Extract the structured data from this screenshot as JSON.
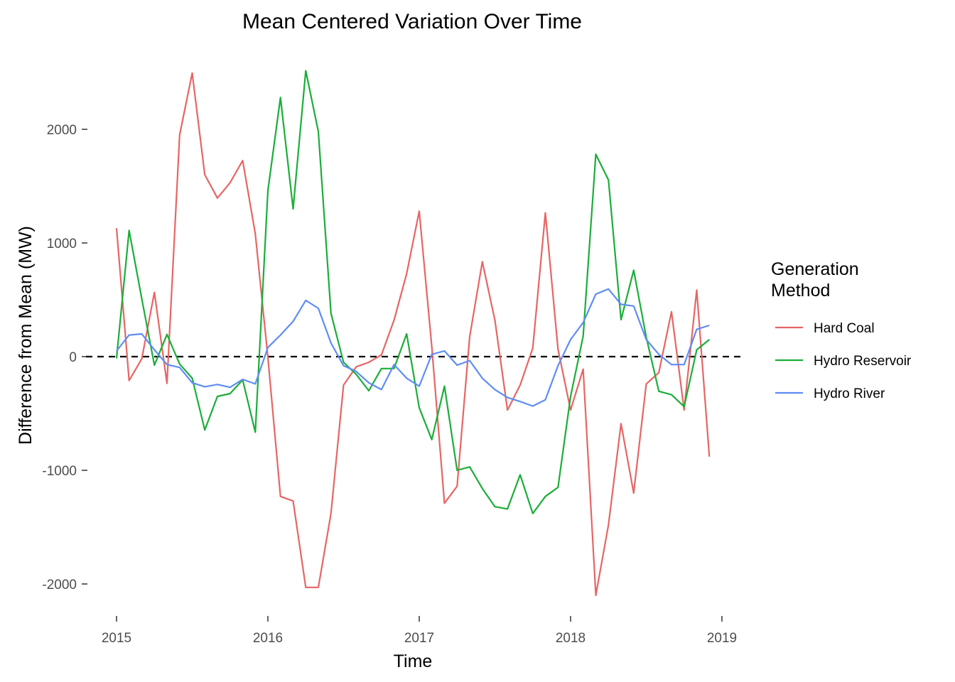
{
  "chart_data": {
    "type": "line",
    "title": "Mean Centered Variation Over Time",
    "xlabel": "Time",
    "ylabel": "Difference from Mean (MW)",
    "xlim": [
      2015.0,
      2019.0
    ],
    "ylim": [
      -2100,
      2520
    ],
    "x_ticks": [
      2015,
      2016,
      2017,
      2018,
      2019
    ],
    "x_tick_labels": [
      "2015",
      "2016",
      "2017",
      "2018",
      "2019"
    ],
    "y_ticks": [
      -2000,
      -1000,
      0,
      1000,
      2000
    ],
    "y_tick_labels": [
      "-2000",
      "-1000",
      "0",
      "1000",
      "2000"
    ],
    "grid": false,
    "legend": {
      "title": "Generation\nMethod",
      "title_lines": [
        "Generation",
        "Method"
      ],
      "position": "right"
    },
    "reference_line": {
      "y": 0,
      "style": "dashed",
      "color": "#000000"
    },
    "x": [
      "2015-01",
      "2015-02",
      "2015-03",
      "2015-04",
      "2015-05",
      "2015-06",
      "2015-07",
      "2015-08",
      "2015-09",
      "2015-10",
      "2015-11",
      "2015-12",
      "2016-01",
      "2016-02",
      "2016-03",
      "2016-04",
      "2016-05",
      "2016-06",
      "2016-07",
      "2016-08",
      "2016-09",
      "2016-10",
      "2016-11",
      "2016-12",
      "2017-01",
      "2017-02",
      "2017-03",
      "2017-04",
      "2017-05",
      "2017-06",
      "2017-07",
      "2017-08",
      "2017-09",
      "2017-10",
      "2017-11",
      "2017-12",
      "2018-01",
      "2018-02",
      "2018-03",
      "2018-04",
      "2018-05",
      "2018-06",
      "2018-07",
      "2018-08",
      "2018-09",
      "2018-10",
      "2018-11",
      "2018-12"
    ],
    "series": [
      {
        "name": "Hard Coal",
        "color": "#E76565",
        "values": [
          1130,
          -210,
          -20,
          565,
          -235,
          1950,
          2495,
          1600,
          1395,
          1530,
          1725,
          1080,
          -5,
          -1230,
          -1270,
          -2030,
          -2030,
          -1380,
          -250,
          -90,
          -50,
          15,
          320,
          730,
          1280,
          85,
          -1290,
          -1140,
          175,
          835,
          320,
          -470,
          -250,
          75,
          1265,
          65,
          -470,
          -110,
          -2100,
          -1480,
          -590,
          -1200,
          -240,
          -140,
          395,
          -470,
          585,
          -880
        ]
      },
      {
        "name": "Hydro Reservoir",
        "color": "#1AAE38",
        "values": [
          -15,
          1110,
          510,
          -75,
          195,
          -65,
          -190,
          -645,
          -350,
          -325,
          -205,
          -665,
          1460,
          2280,
          1300,
          2515,
          1980,
          380,
          -50,
          -155,
          -300,
          -105,
          -105,
          200,
          -450,
          -730,
          -260,
          -1000,
          -970,
          -1160,
          -1320,
          -1340,
          -1040,
          -1380,
          -1230,
          -1150,
          -350,
          180,
          1780,
          1555,
          325,
          760,
          170,
          -305,
          -335,
          -440,
          60,
          150
        ]
      },
      {
        "name": "Hydro River",
        "color": "#5E8DF5",
        "values": [
          50,
          190,
          200,
          60,
          -70,
          -95,
          -230,
          -265,
          -245,
          -270,
          -200,
          -240,
          80,
          190,
          310,
          495,
          425,
          120,
          -80,
          -130,
          -230,
          -290,
          -70,
          -190,
          -260,
          20,
          50,
          -75,
          -35,
          -190,
          -290,
          -360,
          -395,
          -435,
          -380,
          -80,
          150,
          300,
          550,
          595,
          460,
          445,
          150,
          20,
          -70,
          -70,
          240,
          275
        ]
      }
    ]
  }
}
